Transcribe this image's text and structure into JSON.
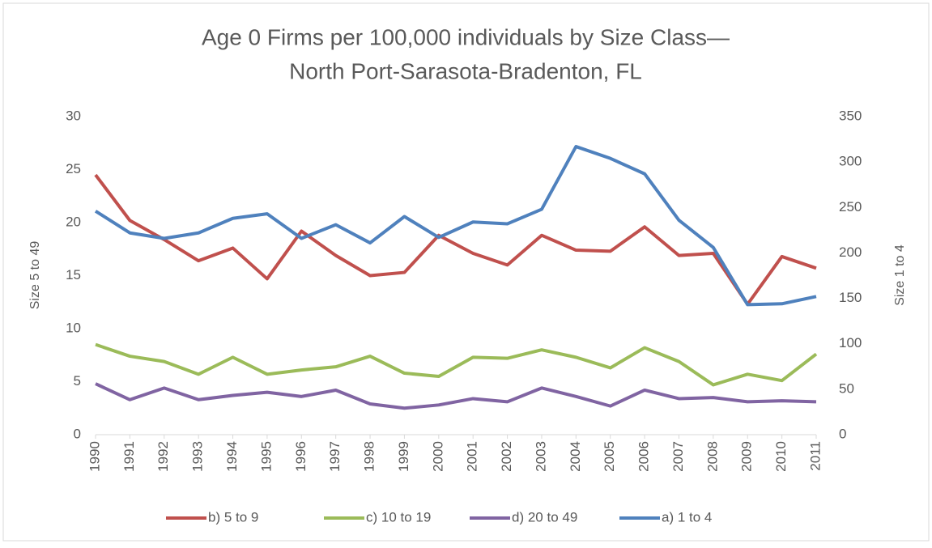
{
  "chart_data": {
    "type": "line",
    "title": "Age 0 Firms per 100,000 individuals by Size Class—",
    "subtitle": "North Port-Sarasota-Bradenton, FL",
    "y_label": "Size 5 to 49",
    "y2_label": "Size 1 to 4",
    "categories": [
      "1990",
      "1991",
      "1992",
      "1993",
      "1994",
      "1995",
      "1996",
      "1997",
      "1998",
      "1999",
      "2000",
      "2001",
      "2002",
      "2003",
      "2004",
      "2005",
      "2006",
      "2007",
      "2008",
      "2009",
      "2010",
      "2011"
    ],
    "series": [
      {
        "name": "b) 5 to 9",
        "color": "#c0504d",
        "values": [
          24.5,
          20.2,
          18.4,
          16.4,
          17.6,
          14.7,
          19.2,
          16.9,
          15.0,
          15.3,
          18.8,
          17.1,
          16.0,
          18.8,
          17.4,
          17.3,
          19.6,
          16.9,
          17.1,
          12.3,
          16.8,
          15.7
        ]
      },
      {
        "name": "c) 10 to 19",
        "color": "#9bbb59",
        "values": [
          8.5,
          7.4,
          6.9,
          5.7,
          7.3,
          5.7,
          6.1,
          6.4,
          7.4,
          5.8,
          5.5,
          7.3,
          7.2,
          8.0,
          7.3,
          6.3,
          8.2,
          6.9,
          4.7,
          5.7,
          5.1,
          7.6
        ]
      },
      {
        "name": "d) 20 to 49",
        "color": "#8064a2",
        "values": [
          4.8,
          3.3,
          4.4,
          3.3,
          3.7,
          4.0,
          3.6,
          4.2,
          2.9,
          2.5,
          2.8,
          3.4,
          3.1,
          4.4,
          3.6,
          2.7,
          4.2,
          3.4,
          3.5,
          3.1,
          3.2,
          3.1
        ]
      },
      {
        "name": "a) 1 to 4",
        "color": "#4f81bd",
        "axis": "y2",
        "values": [
          246,
          222,
          216,
          222,
          238,
          243,
          216,
          231,
          211,
          240,
          217,
          234,
          232,
          248,
          317,
          304,
          287,
          236,
          206,
          143,
          144,
          152
        ]
      }
    ],
    "ylim": [
      0,
      30
    ],
    "yticks": [
      0,
      5,
      10,
      15,
      20,
      25,
      30
    ],
    "y2lim": [
      0,
      350
    ],
    "y2ticks": [
      0,
      50,
      100,
      150,
      200,
      250,
      300,
      350
    ],
    "grid": false,
    "legend": "bottom"
  }
}
